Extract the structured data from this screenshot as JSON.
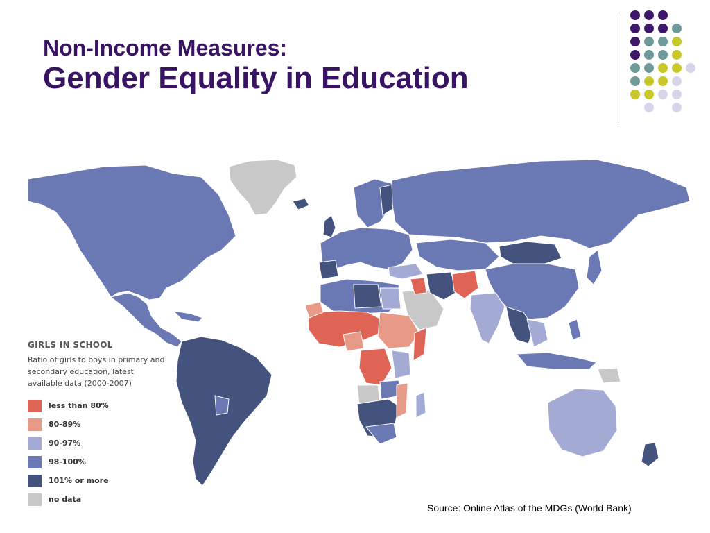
{
  "title": {
    "line1": "Non-Income Measures:",
    "line2": "Gender Equality in Education"
  },
  "decoration": {
    "dot_colors": [
      "#3f1768",
      "#6e9b9a",
      "#c8c82a",
      "#d6d4e8"
    ]
  },
  "map": {
    "colors": {
      "lt80": "#e06455",
      "p80_89": "#e89a88",
      "p90_97": "#a3aad4",
      "p98_100": "#6a78b4",
      "p101": "#44537e",
      "nodata": "#c8c8c8"
    }
  },
  "legend": {
    "title": "GIRLS IN SCHOOL",
    "description": "Ratio of girls to boys in primary and secondary education, latest available data (2000-2007)",
    "items": [
      {
        "label": "less than 80%",
        "color": "#e06455"
      },
      {
        "label": "80-89%",
        "color": "#e89a88"
      },
      {
        "label": "90-97%",
        "color": "#a3aad4"
      },
      {
        "label": "98-100%",
        "color": "#6a78b4"
      },
      {
        "label": "101% or more",
        "color": "#44537e"
      },
      {
        "label": "no data",
        "color": "#c8c8c8"
      }
    ]
  },
  "source": "Source: Online Atlas of the MDGs (World Bank)"
}
